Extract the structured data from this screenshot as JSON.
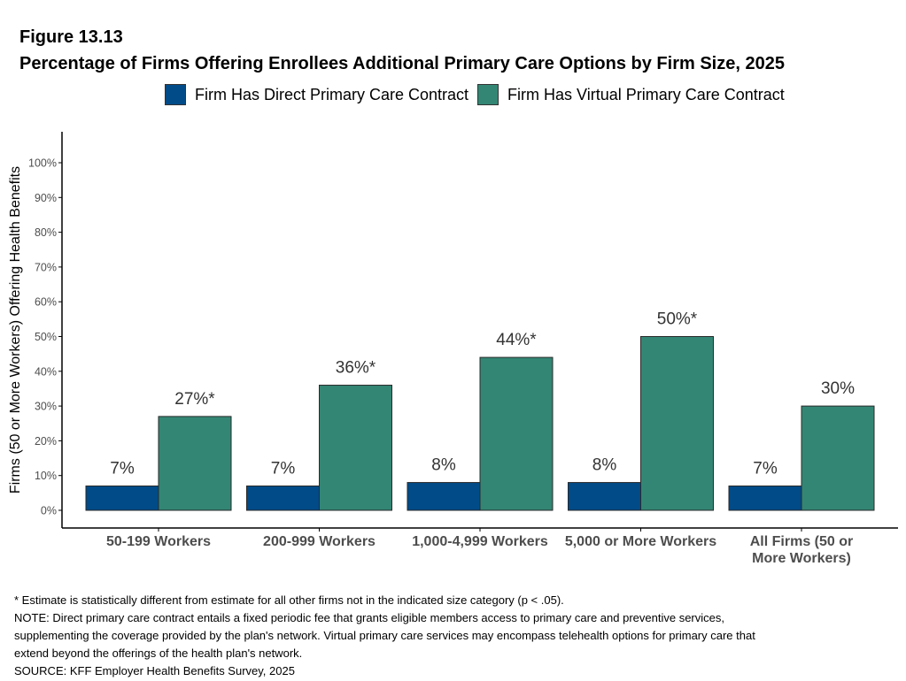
{
  "figure_label": "Figure 13.13",
  "title": "Percentage of Firms Offering Enrollees Additional Primary Care Options by Firm Size, 2025",
  "colors": {
    "direct": "#014B88",
    "virtual": "#338674",
    "axis": "#000000",
    "bar_border": "#2a2a2a",
    "label_text": "#333333"
  },
  "chart_data": {
    "type": "bar",
    "title": "Percentage of Firms Offering Enrollees Additional Primary Care Options by Firm Size, 2025",
    "ylabel": "Firms (50 or More Workers) Offering Health Benefits",
    "xlabel": "",
    "ylim": [
      0,
      100
    ],
    "yticks": [
      "0%",
      "10%",
      "20%",
      "30%",
      "40%",
      "50%",
      "60%",
      "70%",
      "80%",
      "90%",
      "100%"
    ],
    "grid": false,
    "legend_position": "top",
    "categories": [
      "50-199 Workers",
      "200-999 Workers",
      "1,000-4,999 Workers",
      "5,000 or More Workers",
      "All Firms (50 or More Workers)"
    ],
    "series": [
      {
        "name": "Firm Has Direct Primary Care Contract",
        "values": [
          7,
          7,
          8,
          8,
          7
        ],
        "labels": [
          "7%",
          "7%",
          "8%",
          "8%",
          "7%"
        ]
      },
      {
        "name": "Firm Has Virtual Primary Care Contract",
        "values": [
          27,
          36,
          44,
          50,
          30
        ],
        "labels": [
          "27%*",
          "36%*",
          "44%*",
          "50%*",
          "30%"
        ]
      }
    ]
  },
  "footnotes": {
    "asterisk": "* Estimate is statistically different from estimate for all other firms not in the indicated size category (p < .05).",
    "note_1": "NOTE: Direct primary care contract entails a fixed periodic fee that grants eligible members access to primary care and preventive services,",
    "note_2": "supplementing the coverage provided by the plan's network. Virtual primary care services may encompass telehealth options for primary care that",
    "note_3": "extend beyond the offerings of the health plan's network.",
    "source": "SOURCE: KFF Employer Health Benefits Survey, 2025"
  }
}
